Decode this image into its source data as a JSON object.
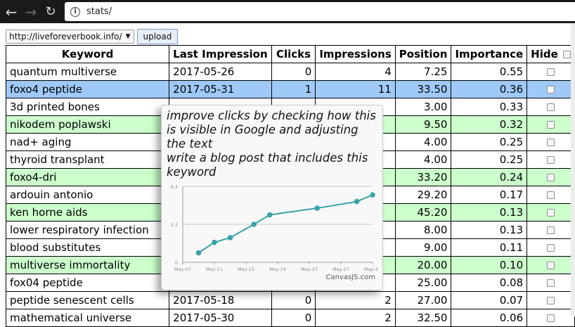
{
  "browser": {
    "back_icon": "arrow-left-icon",
    "forward_icon": "arrow-right-icon",
    "reload_icon": "reload-icon",
    "info_icon": "info-icon",
    "url": "stats/"
  },
  "toolbar": {
    "site_select_value": "http://liveforeverbook.info/",
    "upload_label": "upload"
  },
  "table": {
    "headers": {
      "keyword": "Keyword",
      "last_impression": "Last Impression",
      "clicks": "Clicks",
      "impressions": "Impressions",
      "position": "Position",
      "importance": "Importance",
      "hide": "Hide"
    },
    "rows": [
      {
        "keyword": "quantum multiverse",
        "last_impression": "2017-05-26",
        "clicks": "0",
        "impressions": "4",
        "position": "7.25",
        "importance": "0.55",
        "highlight": "none"
      },
      {
        "keyword": "foxo4 peptide",
        "last_impression": "2017-05-31",
        "clicks": "1",
        "impressions": "11",
        "position": "33.50",
        "importance": "0.36",
        "highlight": "selected"
      },
      {
        "keyword": "3d printed bones",
        "last_impression": "",
        "clicks": "",
        "impressions": "",
        "position": "3.00",
        "importance": "0.33",
        "highlight": "none"
      },
      {
        "keyword": "nikodem poplawski",
        "last_impression": "",
        "clicks": "",
        "impressions": "",
        "position": "9.50",
        "importance": "0.32",
        "highlight": "green"
      },
      {
        "keyword": "nad+ aging",
        "last_impression": "",
        "clicks": "",
        "impressions": "",
        "position": "4.00",
        "importance": "0.25",
        "highlight": "none"
      },
      {
        "keyword": "thyroid transplant",
        "last_impression": "",
        "clicks": "",
        "impressions": "",
        "position": "4.00",
        "importance": "0.25",
        "highlight": "none"
      },
      {
        "keyword": "foxo4-dri",
        "last_impression": "",
        "clicks": "",
        "impressions": "",
        "position": "33.20",
        "importance": "0.24",
        "highlight": "green"
      },
      {
        "keyword": "ardouin antonio",
        "last_impression": "",
        "clicks": "",
        "impressions": "",
        "position": "29.20",
        "importance": "0.17",
        "highlight": "none"
      },
      {
        "keyword": "ken horne aids",
        "last_impression": "",
        "clicks": "",
        "impressions": "",
        "position": "45.20",
        "importance": "0.13",
        "highlight": "green"
      },
      {
        "keyword": "lower respiratory infection",
        "last_impression": "",
        "clicks": "",
        "impressions": "",
        "position": "8.00",
        "importance": "0.13",
        "highlight": "none"
      },
      {
        "keyword": "blood substitutes",
        "last_impression": "",
        "clicks": "",
        "impressions": "",
        "position": "9.00",
        "importance": "0.11",
        "highlight": "none"
      },
      {
        "keyword": "multiverse immortality",
        "last_impression": "",
        "clicks": "",
        "impressions": "",
        "position": "20.00",
        "importance": "0.10",
        "highlight": "green"
      },
      {
        "keyword": "fox04 peptide",
        "last_impression": "",
        "clicks": "",
        "impressions": "",
        "position": "25.00",
        "importance": "0.08",
        "highlight": "none"
      },
      {
        "keyword": "peptide senescent cells",
        "last_impression": "2017-05-18",
        "clicks": "0",
        "impressions": "2",
        "position": "27.00",
        "importance": "0.07",
        "highlight": "none"
      },
      {
        "keyword": "mathematical universe",
        "last_impression": "2017-05-30",
        "clicks": "0",
        "impressions": "2",
        "position": "32.50",
        "importance": "0.06",
        "highlight": "none"
      }
    ]
  },
  "tooltip": {
    "line1": "improve clicks by checking how this is visible in Google and adjusting the text",
    "line2": "write a blog post that includes this keyword",
    "credit": "CanvasJS.com"
  },
  "colors": {
    "selected_row": "#9fc9f7",
    "green_row": "#ccffcc",
    "chart_line": "#3aa3a8"
  },
  "chart_data": {
    "type": "line",
    "x_ticks": [
      "May-07",
      "May-11",
      "May-15",
      "May-19",
      "May-23",
      "May-27",
      "May-31"
    ],
    "y_ticks": [
      "0",
      "0.2",
      "0.4"
    ],
    "ylim": [
      0,
      0.4
    ],
    "grid": true,
    "series": [
      {
        "points": [
          {
            "x": "2017-05-09",
            "y": 0.05
          },
          {
            "x": "2017-05-11",
            "y": 0.105
          },
          {
            "x": "2017-05-13",
            "y": 0.13
          },
          {
            "x": "2017-05-16",
            "y": 0.2
          },
          {
            "x": "2017-05-18",
            "y": 0.25
          },
          {
            "x": "2017-05-24",
            "y": 0.285
          },
          {
            "x": "2017-05-29",
            "y": 0.32
          },
          {
            "x": "2017-05-31",
            "y": 0.355
          }
        ]
      }
    ]
  }
}
